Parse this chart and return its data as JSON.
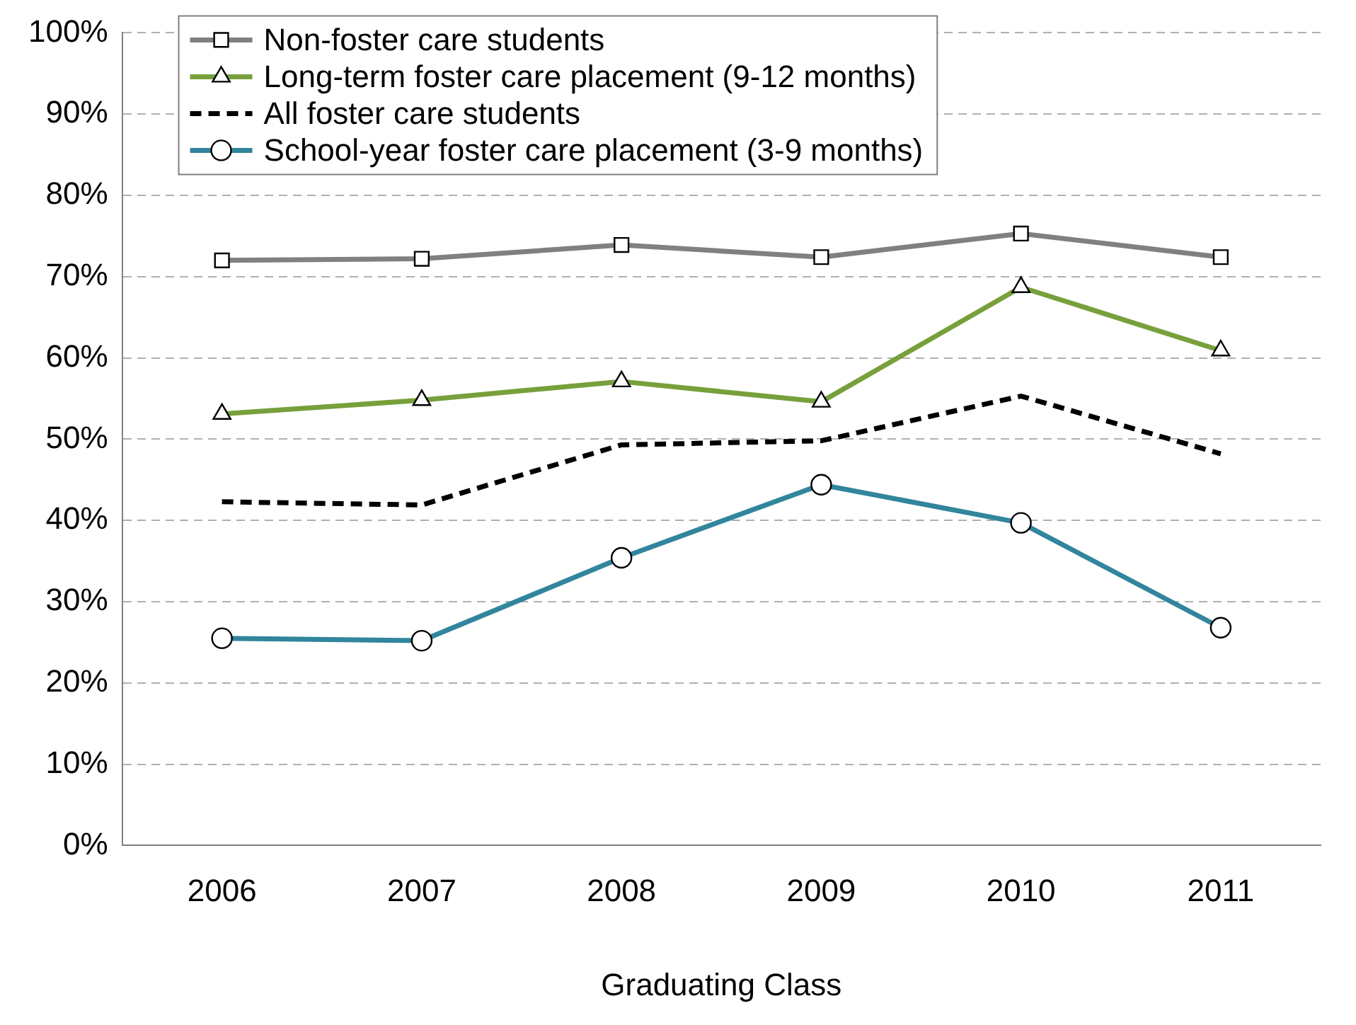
{
  "chart_data": {
    "type": "line",
    "xlabel": "Graduating Class",
    "categories": [
      "2006",
      "2007",
      "2008",
      "2009",
      "2010",
      "2011"
    ],
    "series": [
      {
        "name": "Non-foster care students",
        "color": "#808080",
        "marker": "square",
        "line_style": "solid",
        "values": [
          72,
          72.2,
          73.9,
          72.4,
          75.3,
          72.4
        ]
      },
      {
        "name": "Long-term foster care placement (9-12 months)",
        "color": "#77a03c",
        "marker": "triangle",
        "line_style": "solid",
        "values": [
          53.1,
          54.8,
          57.1,
          54.6,
          68.7,
          60.9
        ]
      },
      {
        "name": "All foster care students",
        "color": "#000000",
        "marker": "none",
        "line_style": "dashed",
        "values": [
          42.3,
          41.9,
          49.3,
          49.8,
          55.3,
          48.2
        ]
      },
      {
        "name": "School-year foster care placement (3-9 months)",
        "color": "#31859c",
        "marker": "circle",
        "line_style": "solid",
        "values": [
          25.5,
          25.2,
          35.4,
          44.4,
          39.7,
          26.8
        ]
      }
    ],
    "ylim": [
      0,
      100
    ],
    "yticks": [
      {
        "value": 0,
        "label": "0%"
      },
      {
        "value": 10,
        "label": "10%"
      },
      {
        "value": 20,
        "label": "20%"
      },
      {
        "value": 30,
        "label": "30%"
      },
      {
        "value": 40,
        "label": "40%"
      },
      {
        "value": 50,
        "label": "50%"
      },
      {
        "value": 60,
        "label": "60%"
      },
      {
        "value": 70,
        "label": "70%"
      },
      {
        "value": 80,
        "label": "80%"
      },
      {
        "value": 90,
        "label": "90%"
      },
      {
        "value": 100,
        "label": "100%"
      }
    ],
    "grid": "y",
    "legend": "top left"
  }
}
